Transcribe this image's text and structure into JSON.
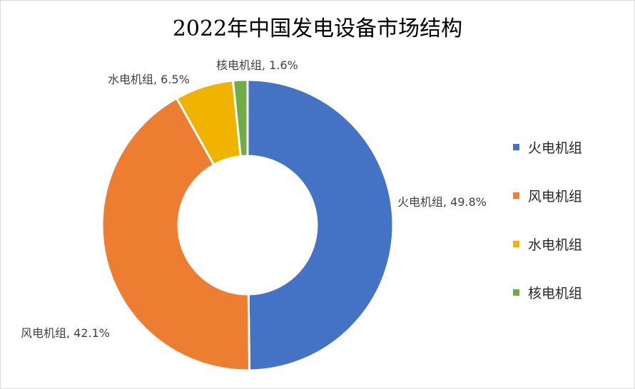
{
  "chart_data": {
    "type": "pie",
    "variant": "donut",
    "title": "2022年中国发电设备市场结构",
    "categories": [
      "火电机组",
      "风电机组",
      "水电机组",
      "核电机组"
    ],
    "values": [
      49.8,
      42.1,
      6.5,
      1.6
    ],
    "unit": "%",
    "data_labels": [
      "火电机组, 49.8%",
      "风电机组, 42.1%",
      "水电机组, 6.5%",
      "核电机组, 1.6%"
    ],
    "colors": [
      "#4472C4",
      "#ED7D31",
      "#F0B400",
      "#70AD47"
    ],
    "legend": {
      "position": "right",
      "entries": [
        "火电机组",
        "风电机组",
        "水电机组",
        "核电机组"
      ]
    },
    "start_angle": "12 o'clock",
    "direction": "clockwise"
  }
}
